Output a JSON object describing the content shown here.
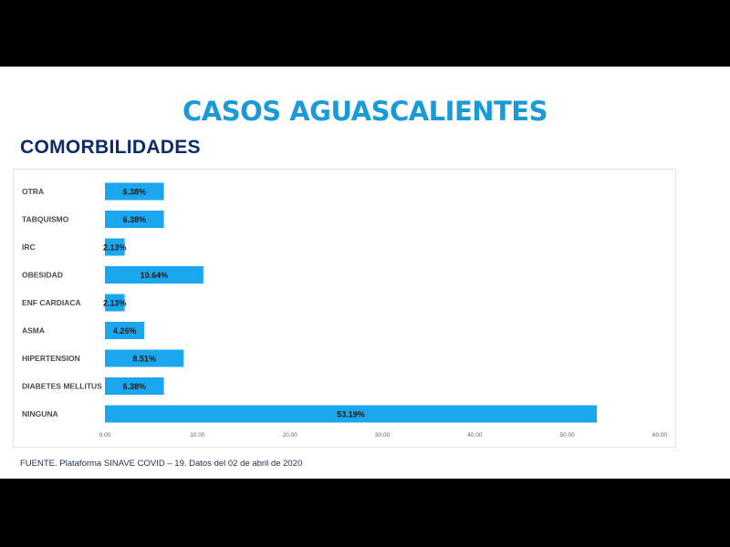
{
  "slide": {
    "title": "CASOS AGUASCALIENTES",
    "subtitle": "COMORBILIDADES",
    "source": "FUENTE. Plataforma SINAVE COVID – 19. Datos del 02 de abril de 2020"
  },
  "colors": {
    "title": "#1a9ad6",
    "subtitle": "#0d2b66",
    "bar": "#1aa7ee"
  },
  "chart_data": {
    "type": "bar",
    "orientation": "horizontal",
    "title": "",
    "xlabel": "",
    "ylabel": "",
    "categories": [
      "OTRA",
      "TABQUISMO",
      "IRC",
      "OBESIDAD",
      "ENF CARDIACA",
      "ASMA",
      "HIPERTENSION",
      "DIABETES MELLITUS",
      "NINGUNA"
    ],
    "values": [
      6.38,
      6.38,
      2.13,
      10.64,
      2.13,
      4.26,
      8.51,
      6.38,
      53.19
    ],
    "data_labels": [
      "6.38%",
      "6.38%",
      "2.13%",
      "10.64%",
      "2.13%",
      "4.26%",
      "8.51%",
      "6.38%",
      "53.19%"
    ],
    "xlim": [
      0,
      60
    ],
    "xticks": [
      "0.00",
      "10.00",
      "20.00",
      "30.00",
      "40.00",
      "50.00",
      "60.00"
    ],
    "grid": false,
    "legend": "none"
  }
}
